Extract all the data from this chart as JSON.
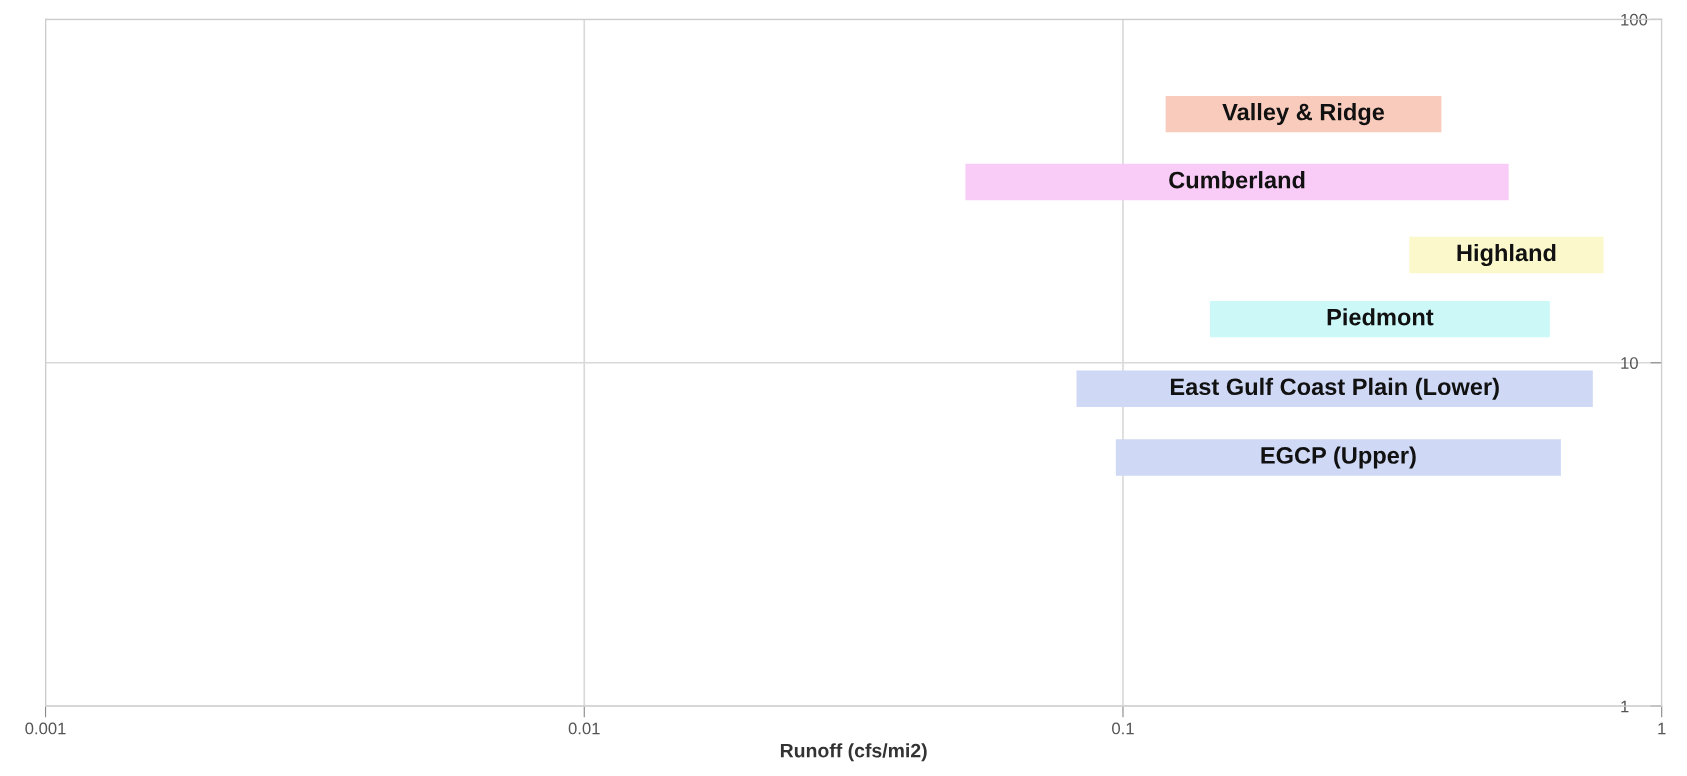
{
  "chart_data": {
    "type": "bar",
    "orientation": "horizontal",
    "log": "xy",
    "xlabel": "Runoff (cfs/mi2)",
    "xlim": [
      0.001,
      1
    ],
    "xticks": [
      0.001,
      0.01,
      0.1,
      1
    ],
    "ylim": [
      1,
      100
    ],
    "yticks": [
      1,
      10,
      100
    ],
    "grid": true,
    "series": [
      {
        "name": "Valley & Ridge",
        "color": "#f8cbbd",
        "x": [
          53
        ],
        "base": [
          0.12
        ],
        "values": [
          0.27
        ]
      },
      {
        "name": "Cumberland",
        "color": "#f8ccf7",
        "x": [
          33.6
        ],
        "base": [
          0.051
        ],
        "values": [
          0.469
        ]
      },
      {
        "name": "Highland",
        "color": "#fbf8cc",
        "x": [
          20.6
        ],
        "base": [
          0.34
        ],
        "values": [
          0.44
        ]
      },
      {
        "name": "Piedmont",
        "color": "#ccf8f8",
        "x": [
          13.4
        ],
        "base": [
          0.145
        ],
        "values": [
          0.475
        ]
      },
      {
        "name": "East Gulf Coast Plain (Lower)",
        "color": "#cfd8f5",
        "x": [
          8.4
        ],
        "base": [
          0.082
        ],
        "values": [
          0.663
        ]
      },
      {
        "name": "EGCP (Upper)",
        "color": "#cfd8f5",
        "x": [
          5.3
        ],
        "base": [
          0.097
        ],
        "values": [
          0.553
        ]
      }
    ]
  }
}
